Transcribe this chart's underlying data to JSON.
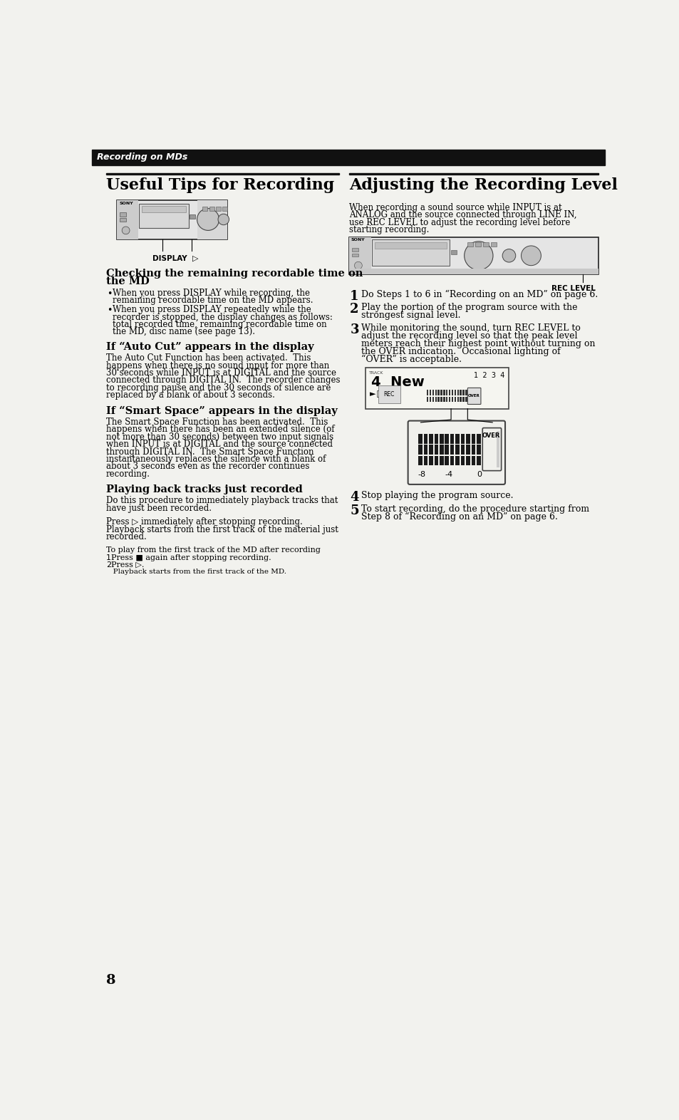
{
  "bg_color": "#f2f2ee",
  "page_number": "8",
  "header": {
    "text": "Recording on MDs",
    "bg_color": "#111111",
    "text_color": "#ffffff"
  },
  "left_column": {
    "title": "Useful Tips for Recording",
    "sections": [
      {
        "type": "section_header",
        "text": "Checking the remaining recordable time on\nthe MD"
      },
      {
        "type": "bullet",
        "text": "When you press DISPLAY while recording, the\nremaining recordable time on the MD appears."
      },
      {
        "type": "bullet",
        "text": "When you press DISPLAY repeatedly while the\nrecorder is stopped, the display changes as follows:\ntotal recorded time, remaining recordable time on\nthe MD, disc name (see page 13)."
      },
      {
        "type": "section_header",
        "text": "If “Auto Cut” appears in the display"
      },
      {
        "type": "body",
        "text": "The Auto Cut Function has been activated.  This\nhappens when there is no sound input for more than\n30 seconds while INPUT is at DIGITAL and the source\nconnected through DIGITAL IN.  The recorder changes\nto recording pause and the 30 seconds of silence are\nreplaced by a blank of about 3 seconds."
      },
      {
        "type": "section_header",
        "text": "If “Smart Space” appears in the display"
      },
      {
        "type": "body",
        "text": "The Smart Space Function has been activated.  This\nhappens when there has been an extended silence (of\nnot more than 30 seconds) between two input signals\nwhen INPUT is at DIGITAL and the source connected\nthrough DIGITAL IN.  The Smart Space Function\ninstantaneously replaces the silence with a blank of\nabout 3 seconds even as the recorder continues\nrecording."
      },
      {
        "type": "section_header",
        "text": "Playing back tracks just recorded"
      },
      {
        "type": "body",
        "text": "Do this procedure to immediately playback tracks that\nhave just been recorded."
      },
      {
        "type": "spacer"
      },
      {
        "type": "body",
        "text": "Press ▷ immediately after stopping recording.\nPlayback starts from the first track of the material just\nrecorded."
      },
      {
        "type": "spacer"
      },
      {
        "type": "subheader",
        "text": "To play from the first track of the MD after recording"
      },
      {
        "type": "numbered_small",
        "number": "1",
        "text": "Press ■ again after stopping recording."
      },
      {
        "type": "numbered_small",
        "number": "2",
        "text": "Press ▷."
      },
      {
        "type": "body_small",
        "text": "   Playback starts from the first track of the MD."
      }
    ]
  },
  "right_column": {
    "title": "Adjusting the Recording Level",
    "intro": "When recording a sound source while INPUT is at\nANALOG and the source connected through LINE IN,\nuse REC LEVEL to adjust the recording level before\nstarting recording.",
    "steps": [
      {
        "number": "1",
        "text": "Do Steps 1 to 6 in “Recording on an MD” on page 6."
      },
      {
        "number": "2",
        "text": "Play the portion of the program source with the\nstrongest signal level."
      },
      {
        "number": "3",
        "text": "While monitoring the sound, turn REC LEVEL to\nadjust the recording level so that the peak level\nmeters reach their highest point without turning on\nthe OVER indication.  Occasional lighting of\n“OVER” is acceptable."
      },
      {
        "number": "4",
        "text": "Stop playing the program source."
      },
      {
        "number": "5",
        "text": "To start recording, do the procedure starting from\nStep 8 of “Recording on an MD” on page 6."
      }
    ]
  }
}
